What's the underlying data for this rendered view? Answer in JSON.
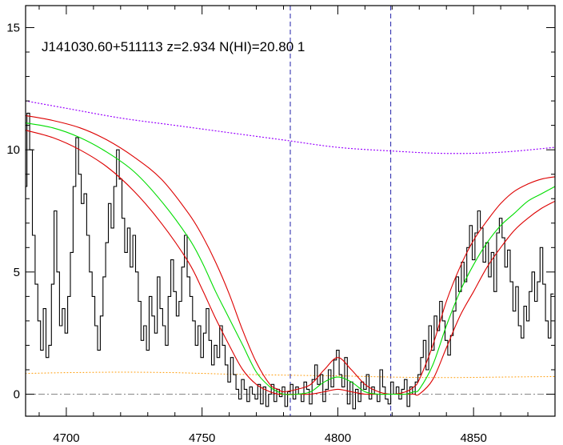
{
  "chart_data": {
    "type": "line",
    "title": "J141030.60+511113 z=2.934 N(HI)=20.80 1",
    "xlabel": "",
    "ylabel": "",
    "xlim": [
      4685,
      4880
    ],
    "ylim": [
      -0.9,
      15.9
    ],
    "x_ticks": [
      4700,
      4750,
      4800,
      4850
    ],
    "x_tick_labels": [
      "4700",
      "4750",
      "4800",
      "4850"
    ],
    "y_ticks": [
      0,
      5,
      10,
      15
    ],
    "y_tick_labels": [
      "0",
      "5",
      "10",
      "15"
    ],
    "grid": false,
    "legend": "none",
    "vlines": [
      4782.5,
      4819.5
    ],
    "hlines": [
      0
    ],
    "colors": {
      "spectrum": "#000000",
      "best_fit": "#00dd00",
      "fit_bounds": "#dd0000",
      "continuum": "#9900ff",
      "error": "#ff9900",
      "vline": "#2222aa",
      "zero": "#888888"
    },
    "series": [
      {
        "role": "spectrum",
        "style": "steps",
        "x": [
          4685,
          4686,
          4687,
          4688,
          4689,
          4690,
          4691,
          4692,
          4693,
          4694,
          4695,
          4696,
          4697,
          4698,
          4699,
          4700,
          4701,
          4702,
          4703,
          4704,
          4705,
          4706,
          4707,
          4708,
          4709,
          4710,
          4711,
          4712,
          4713,
          4714,
          4715,
          4716,
          4717,
          4718,
          4719,
          4720,
          4721,
          4722,
          4723,
          4724,
          4725,
          4726,
          4727,
          4728,
          4729,
          4730,
          4731,
          4732,
          4733,
          4734,
          4735,
          4736,
          4737,
          4738,
          4739,
          4740,
          4741,
          4742,
          4743,
          4744,
          4745,
          4746,
          4747,
          4748,
          4749,
          4750,
          4751,
          4752,
          4753,
          4754,
          4755,
          4756,
          4757,
          4758,
          4759,
          4760,
          4761,
          4762,
          4763,
          4764,
          4765,
          4766,
          4767,
          4768,
          4769,
          4770,
          4771,
          4772,
          4773,
          4774,
          4775,
          4776,
          4777,
          4778,
          4779,
          4780,
          4781,
          4782,
          4783,
          4784,
          4785,
          4786,
          4787,
          4788,
          4789,
          4790,
          4791,
          4792,
          4793,
          4794,
          4795,
          4796,
          4797,
          4798,
          4799,
          4800,
          4801,
          4802,
          4803,
          4804,
          4805,
          4806,
          4807,
          4808,
          4809,
          4810,
          4811,
          4812,
          4813,
          4814,
          4815,
          4816,
          4817,
          4818,
          4819,
          4820,
          4821,
          4822,
          4823,
          4824,
          4825,
          4826,
          4827,
          4828,
          4829,
          4830,
          4831,
          4832,
          4833,
          4834,
          4835,
          4836,
          4837,
          4838,
          4839,
          4840,
          4841,
          4842,
          4843,
          4844,
          4845,
          4846,
          4847,
          4848,
          4849,
          4850,
          4851,
          4852,
          4853,
          4854,
          4855,
          4856,
          4857,
          4858,
          4859,
          4860,
          4861,
          4862,
          4863,
          4864,
          4865,
          4866,
          4867,
          4868,
          4869,
          4870,
          4871,
          4872,
          4873,
          4874,
          4875,
          4876,
          4877,
          4878,
          4879
        ],
        "y": [
          8.5,
          11.5,
          10.0,
          6.5,
          4.5,
          3.0,
          1.8,
          3.5,
          1.5,
          2.0,
          4.5,
          7.5,
          5.0,
          2.8,
          3.5,
          2.5,
          4.0,
          5.8,
          8.5,
          10.5,
          9.0,
          7.8,
          8.2,
          6.5,
          5.0,
          4.0,
          2.8,
          1.8,
          3.2,
          4.8,
          6.2,
          7.8,
          6.8,
          8.5,
          10.0,
          8.8,
          7.2,
          5.8,
          6.8,
          5.2,
          6.5,
          5.0,
          3.8,
          2.2,
          2.8,
          1.8,
          4.0,
          3.2,
          2.5,
          4.8,
          3.5,
          2.8,
          2.0,
          4.0,
          5.5,
          4.2,
          3.2,
          3.8,
          5.2,
          6.5,
          4.8,
          4.0,
          3.0,
          2.0,
          2.8,
          1.5,
          2.5,
          3.5,
          2.2,
          1.2,
          2.0,
          1.5,
          2.8,
          2.0,
          1.2,
          0.5,
          1.5,
          0.8,
          0.2,
          -0.2,
          0.6,
          0.2,
          -0.3,
          0.3,
          0.0,
          -0.2,
          0.4,
          -0.4,
          0.3,
          -0.5,
          0.0,
          0.4,
          -0.3,
          0.2,
          -0.1,
          0.3,
          -0.5,
          0.1,
          0.4,
          -0.2,
          0.3,
          0.0,
          -0.3,
          0.5,
          0.2,
          -0.4,
          0.6,
          1.2,
          0.4,
          0.8,
          -0.3,
          0.2,
          1.0,
          0.3,
          1.4,
          1.8,
          0.8,
          0.3,
          1.5,
          -0.4,
          0.5,
          -0.6,
          0.2,
          -0.3,
          0.5,
          0.2,
          0.8,
          -0.2,
          0.3,
          0.0,
          -0.3,
          1.0,
          0.3,
          -0.2,
          -0.4,
          0.5,
          0.0,
          0.3,
          -0.2,
          0.2,
          0.6,
          -0.5,
          0.3,
          0.0,
          0.5,
          0.8,
          1.5,
          2.2,
          1.0,
          2.8,
          1.8,
          3.2,
          2.6,
          3.8,
          3.0,
          2.2,
          1.6,
          2.4,
          3.4,
          4.8,
          4.2,
          5.4,
          4.6,
          6.0,
          6.9,
          5.5,
          6.6,
          7.5,
          6.8,
          5.4,
          6.2,
          4.8,
          5.8,
          4.2,
          6.6,
          7.2,
          6.4,
          5.2,
          5.9,
          4.6,
          3.4,
          4.4,
          2.8,
          2.3,
          3.6,
          3.0,
          4.2,
          5.0,
          3.8,
          4.6,
          6.0,
          4.5,
          3.0,
          2.3,
          4.1
        ]
      },
      {
        "role": "best_fit",
        "style": "line",
        "x": [
          4685,
          4695,
          4705,
          4715,
          4725,
          4735,
          4745,
          4750,
          4755,
          4760,
          4765,
          4770,
          4775,
          4778,
          4780,
          4785,
          4790,
          4795,
          4800,
          4805,
          4810,
          4815,
          4820,
          4825,
          4828,
          4830,
          4835,
          4840,
          4845,
          4850,
          4855,
          4860,
          4865,
          4870,
          4875,
          4880
        ],
        "y": [
          11.1,
          10.9,
          10.5,
          9.9,
          9.1,
          7.9,
          6.4,
          5.4,
          4.2,
          3.1,
          2.0,
          0.9,
          0.3,
          0.1,
          0.0,
          0.0,
          0.1,
          0.5,
          0.7,
          0.5,
          0.1,
          0.0,
          0.0,
          0.0,
          0.1,
          0.2,
          1.2,
          2.8,
          4.2,
          5.3,
          6.2,
          6.9,
          7.4,
          7.9,
          8.2,
          8.5
        ]
      },
      {
        "role": "fit_upper",
        "style": "line",
        "x": [
          4685,
          4695,
          4705,
          4715,
          4725,
          4735,
          4745,
          4750,
          4755,
          4760,
          4765,
          4770,
          4775,
          4778,
          4780,
          4785,
          4790,
          4795,
          4800,
          4805,
          4810,
          4815,
          4820,
          4825,
          4828,
          4830,
          4835,
          4840,
          4845,
          4850,
          4855,
          4860,
          4865,
          4870,
          4875,
          4880
        ],
        "y": [
          11.4,
          11.2,
          10.9,
          10.4,
          9.7,
          8.8,
          7.4,
          6.5,
          5.4,
          4.1,
          2.6,
          1.3,
          0.4,
          0.2,
          0.1,
          0.2,
          0.4,
          1.0,
          1.5,
          1.0,
          0.4,
          0.1,
          0.0,
          0.1,
          0.3,
          0.6,
          2.0,
          3.8,
          5.2,
          6.3,
          7.1,
          7.8,
          8.3,
          8.6,
          8.8,
          8.9
        ]
      },
      {
        "role": "fit_lower",
        "style": "line",
        "x": [
          4685,
          4695,
          4705,
          4715,
          4725,
          4735,
          4745,
          4750,
          4755,
          4760,
          4765,
          4770,
          4775,
          4778,
          4780,
          4785,
          4790,
          4795,
          4800,
          4805,
          4810,
          4815,
          4820,
          4825,
          4828,
          4830,
          4835,
          4840,
          4845,
          4850,
          4855,
          4860,
          4865,
          4870,
          4875,
          4880
        ],
        "y": [
          10.8,
          10.5,
          10.0,
          9.3,
          8.3,
          7.0,
          5.4,
          4.3,
          3.1,
          2.0,
          1.0,
          0.4,
          0.1,
          0.0,
          0.0,
          0.0,
          0.0,
          0.1,
          0.2,
          0.1,
          0.0,
          0.0,
          0.0,
          0.0,
          0.0,
          0.0,
          0.6,
          1.9,
          3.2,
          4.2,
          5.2,
          6.0,
          6.7,
          7.2,
          7.6,
          7.9
        ]
      },
      {
        "role": "continuum",
        "style": "dotted",
        "x": [
          4685,
          4700,
          4720,
          4740,
          4760,
          4780,
          4800,
          4820,
          4840,
          4860,
          4880
        ],
        "y": [
          12.0,
          11.7,
          11.3,
          11.0,
          10.7,
          10.4,
          10.1,
          9.95,
          9.85,
          9.9,
          10.1
        ]
      },
      {
        "role": "error",
        "style": "dotted",
        "x": [
          4685,
          4700,
          4720,
          4740,
          4760,
          4780,
          4800,
          4820,
          4840,
          4860,
          4880
        ],
        "y": [
          0.85,
          0.88,
          0.9,
          0.88,
          0.82,
          0.78,
          0.75,
          0.7,
          0.68,
          0.7,
          0.72
        ]
      }
    ]
  }
}
